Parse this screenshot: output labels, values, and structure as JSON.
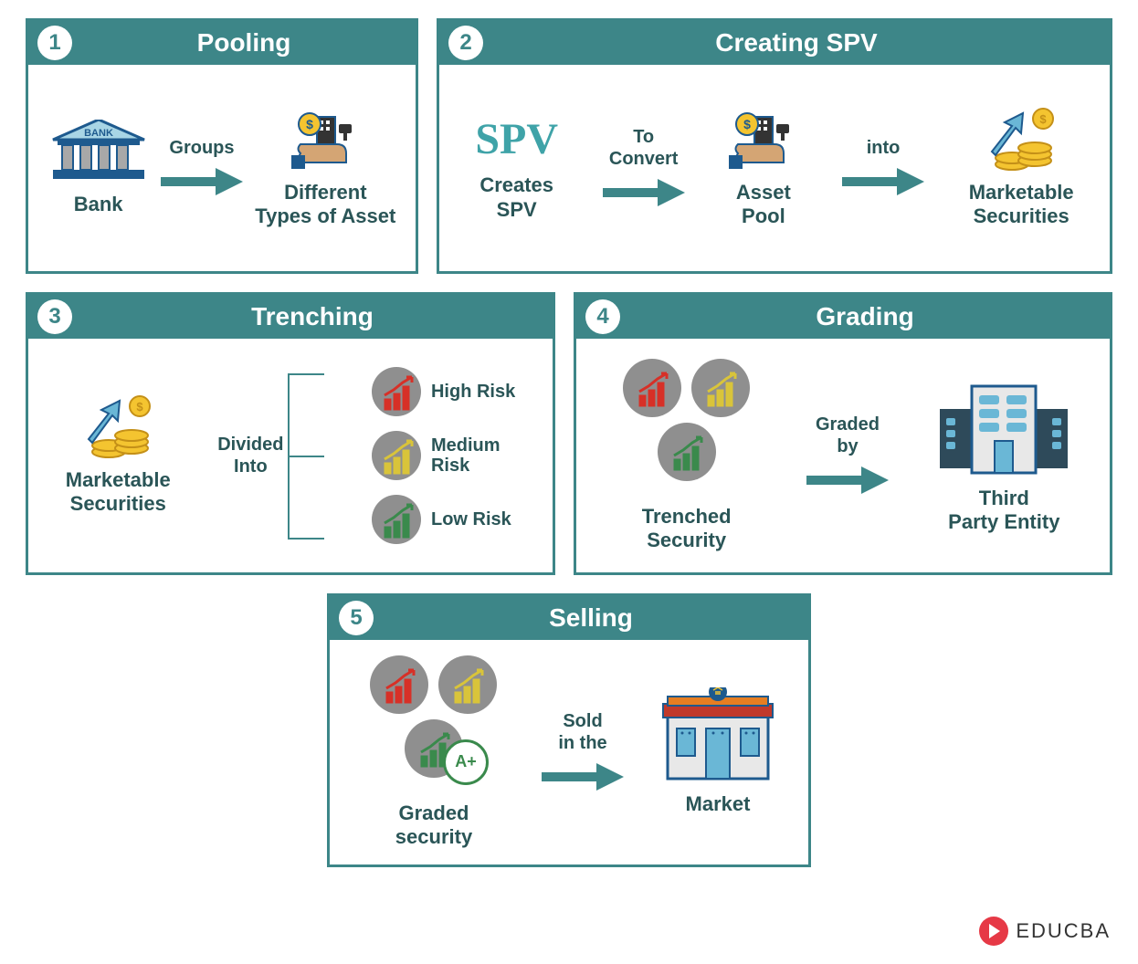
{
  "panels": {
    "p1": {
      "number": "1",
      "title": "Pooling",
      "left_label": "Bank",
      "arrow_label": "Groups",
      "right_label": "Different\nTypes of Asset"
    },
    "p2": {
      "number": "2",
      "title": "Creating SPV",
      "spv_text": "SPV",
      "left_label": "Creates\nSPV",
      "arrow1_label": "To\nConvert",
      "mid_label": "Asset\nPool",
      "arrow2_label": "into",
      "right_label": "Marketable\nSecurities"
    },
    "p3": {
      "number": "3",
      "title": "Trenching",
      "left_label": "Marketable\nSecurities",
      "divider_label": "Divided\nInto",
      "risks": [
        {
          "label": "High Risk",
          "color": "#d73027"
        },
        {
          "label": "Medium\nRisk",
          "color": "#d9c43a"
        },
        {
          "label": "Low Risk",
          "color": "#3a8a4c"
        }
      ]
    },
    "p4": {
      "number": "4",
      "title": "Grading",
      "left_label": "Trenched\nSecurity",
      "arrow_label": "Graded\nby",
      "right_label": "Third\nParty Entity"
    },
    "p5": {
      "number": "5",
      "title": "Selling",
      "left_label": "Graded\nsecurity",
      "grade_text": "A+",
      "arrow_label": "Sold\nin the",
      "right_label": "Market"
    }
  },
  "logo_text": "EDUCBA",
  "sizes": {
    "p1_w": 430,
    "p1_h": 280,
    "p2_w": 740,
    "p2_h": 280,
    "p3_w": 580,
    "p3_h": 310,
    "p4_w": 590,
    "p4_h": 310,
    "p5_w": 530,
    "p5_h": 300
  },
  "colors": {
    "teal": "#3d8688",
    "teal_dark": "#2a5557",
    "arrow": "#3d8688",
    "circle_bg": "#8f8f8f",
    "red": "#d73027",
    "yellow": "#d9c43a",
    "green": "#3a8a4c",
    "coin": "#f4c430",
    "blue_light": "#6ab7d6",
    "blue_dark": "#1e5a8e",
    "orange": "#e67e22"
  }
}
